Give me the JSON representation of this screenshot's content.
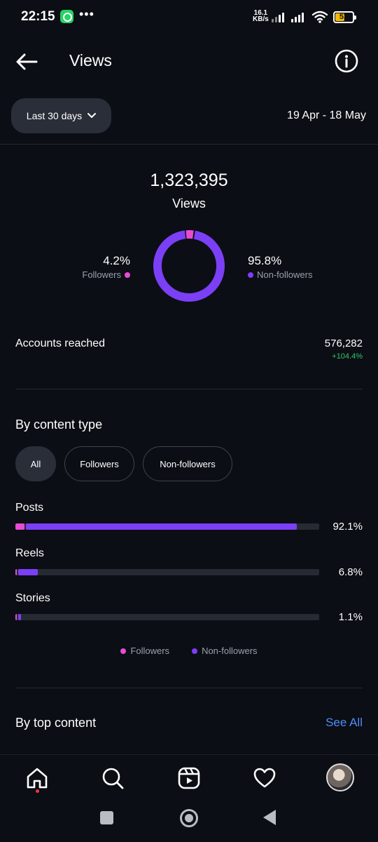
{
  "status_bar": {
    "time": "22:15",
    "net_speed_value": "16.1",
    "net_speed_unit": "KB/s",
    "battery": "52",
    "icons": [
      "whatsapp-icon",
      "more-dots-icon",
      "signal-icon",
      "wifi-icon",
      "battery-icon"
    ]
  },
  "header": {
    "title": "Views",
    "icons": [
      "back-arrow-icon",
      "info-icon"
    ]
  },
  "filter_bar": {
    "range_label": "Last 30 days",
    "date_range": "19 Apr - 18 May"
  },
  "overview": {
    "total": "1,323,395",
    "total_label": "Views",
    "followers_pct": "4.2%",
    "followers_label": "Followers",
    "followers_fraction": 0.042,
    "non_followers_pct": "95.8%",
    "non_followers_label": "Non-followers",
    "non_followers_fraction": 0.958
  },
  "reach": {
    "label": "Accounts reached",
    "value": "576,282",
    "change": "+104.4%"
  },
  "content_type": {
    "title": "By content type",
    "filters": [
      "All",
      "Followers",
      "Non-followers"
    ],
    "active_filter": "All",
    "rows": [
      {
        "label": "Posts",
        "pct": "92.1%",
        "followers_fraction": 0.03,
        "non_followers_fraction": 0.891
      },
      {
        "label": "Reels",
        "pct": "6.8%",
        "followers_fraction": 0.004,
        "non_followers_fraction": 0.064
      },
      {
        "label": "Stories",
        "pct": "1.1%",
        "followers_fraction": 0.002,
        "non_followers_fraction": 0.009
      }
    ],
    "legend": [
      "Followers",
      "Non-followers"
    ]
  },
  "top_content": {
    "title": "By top content",
    "see_all": "See All"
  },
  "colors": {
    "followers": "#e84ad6",
    "non_followers": "#7b3ff5",
    "positive": "#2fc76b",
    "link": "#4f8cf7"
  },
  "bottom_nav": [
    "home-icon",
    "search-icon",
    "reels-icon",
    "heart-icon",
    "profile-avatar"
  ]
}
